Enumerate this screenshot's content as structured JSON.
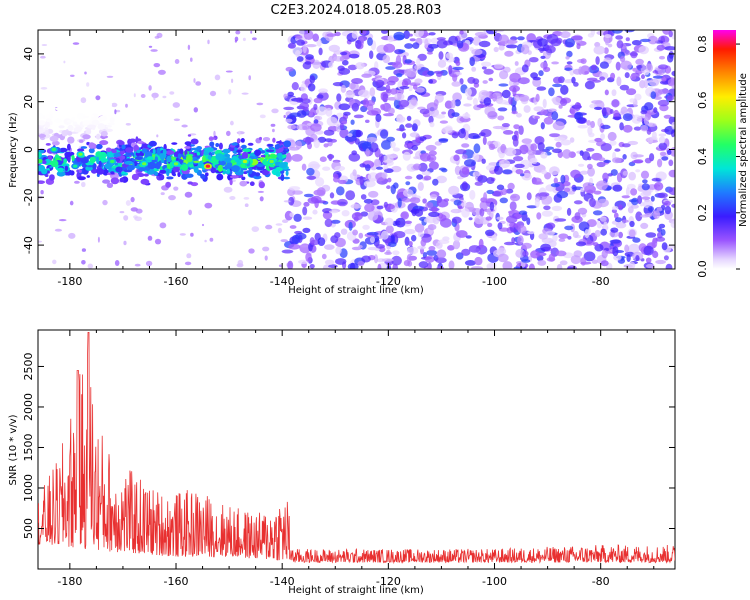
{
  "title": "C2E3.2024.018.05.28.R03",
  "chart_data": [
    {
      "type": "heatmap",
      "xlabel": "Height of straight line (km)",
      "ylabel": "Frequency (Hz)",
      "xlim": [
        -186,
        -66
      ],
      "ylim": [
        -50,
        50
      ],
      "xticks": [
        -180,
        -160,
        -140,
        -120,
        -100,
        -80
      ],
      "yticks": [
        -40,
        -20,
        0,
        20,
        40
      ],
      "colorbar": {
        "label": "Normalized spectral amplitude",
        "range": [
          0.0,
          0.85
        ],
        "ticks": [
          0.0,
          0.2,
          0.4,
          0.6,
          0.8
        ],
        "colormap": "rainbow (purple-blue-cyan-green-yellow-red, magenta top)"
      },
      "features": {
        "signal_band_x": [
          -186,
          -139
        ],
        "signal_band_freq_center": -5,
        "signal_band_halfwidth": 7,
        "noise_region_x": [
          -139,
          -66
        ],
        "peak_amplitude": 0.8,
        "peak_location": [
          -154,
          -7
        ]
      }
    },
    {
      "type": "line",
      "xlabel": "Height of straight line (km)",
      "ylabel": "SNR (10 * v/v)",
      "xlim": [
        -186,
        -66
      ],
      "ylim": [
        0,
        2950
      ],
      "xticks": [
        -180,
        -160,
        -140,
        -120,
        -100,
        -80
      ],
      "yticks": [
        500,
        1000,
        1500,
        2000,
        2500
      ],
      "color": "#e83030",
      "envelope_km": [
        -186,
        -182,
        -178,
        -176.5,
        -175,
        -172,
        -168,
        -164,
        -160,
        -156,
        -152,
        -148,
        -144,
        -140,
        -139,
        -138,
        -120,
        -100,
        -80,
        -66
      ],
      "envelope_snr": [
        900,
        1400,
        2450,
        2920,
        1900,
        1400,
        1200,
        1000,
        950,
        1000,
        850,
        750,
        700,
        950,
        900,
        250,
        250,
        250,
        300,
        300
      ],
      "baseline_km": [
        -186,
        -178,
        -170,
        -160,
        -150,
        -140,
        -138,
        -66
      ],
      "baseline_snr": [
        300,
        250,
        200,
        150,
        150,
        100,
        80,
        80
      ]
    }
  ]
}
